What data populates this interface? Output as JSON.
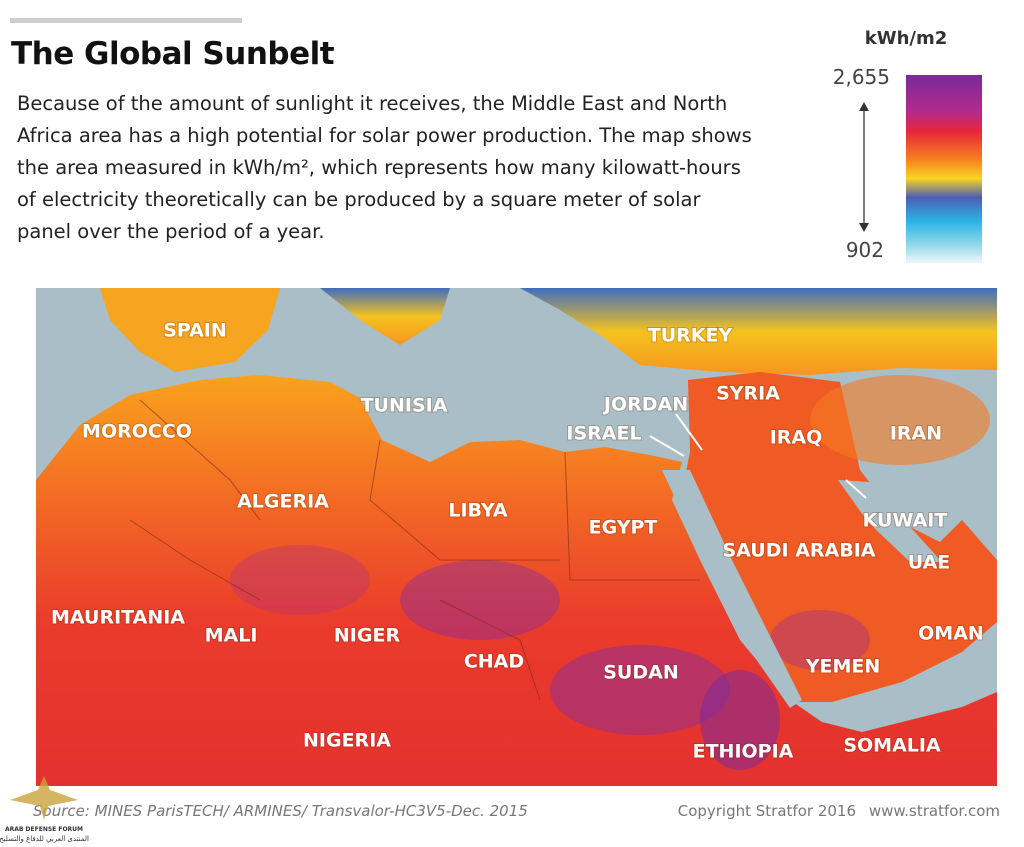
{
  "header": {
    "title": "The Global Sunbelt",
    "description": "Because of the amount of sunlight it receives, the Middle East and North Africa area has a high potential for solar power production. The map shows the area measured in kWh/m², which represents how many kilowatt-hours of electricity theoretically can be produced by a square meter of solar panel over the period of a year."
  },
  "legend": {
    "unit": "kWh/m2",
    "max": "2,655",
    "min": "902"
  },
  "map": {
    "labels": [
      "SPAIN",
      "TURKEY",
      "MOROCCO",
      "TUNISIA",
      "JORDAN",
      "SYRIA",
      "ISRAEL",
      "IRAQ",
      "IRAN",
      "ALGERIA",
      "LIBYA",
      "EGYPT",
      "KUWAIT",
      "SAUDI ARABIA",
      "UAE",
      "MAURITANIA",
      "MALI",
      "NIGER",
      "CHAD",
      "SUDAN",
      "YEMEN",
      "OMAN",
      "NIGERIA",
      "ETHIOPIA",
      "SOMALIA"
    ]
  },
  "footer": {
    "source": "Source: MINES ParisTECH/ ARMINES/ Transvalor-HC3V5-Dec. 2015",
    "copyright": "Copyright Stratfor 2016",
    "website": "www.stratfor.com",
    "watermark": "ARAB DEFENSE FORUM",
    "watermark_arabic": "المنتدى العربي للدفاع والتسليح"
  }
}
